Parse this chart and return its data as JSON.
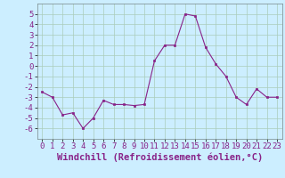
{
  "x": [
    0,
    1,
    2,
    3,
    4,
    5,
    6,
    7,
    8,
    9,
    10,
    11,
    12,
    13,
    14,
    15,
    16,
    17,
    18,
    19,
    20,
    21,
    22,
    23
  ],
  "y": [
    -2.5,
    -3.0,
    -4.7,
    -4.5,
    -6.0,
    -5.0,
    -3.3,
    -3.7,
    -3.7,
    -3.8,
    -3.7,
    0.5,
    2.0,
    2.0,
    5.0,
    4.8,
    1.8,
    0.2,
    -1.0,
    -3.0,
    -3.7,
    -2.2,
    -3.0,
    -3.0
  ],
  "line_color": "#882288",
  "marker": "s",
  "marker_size": 2,
  "bg_color": "#cceeff",
  "grid_color": "#aaccbb",
  "xlabel": "Windchill (Refroidissement éolien,°C)",
  "xlabel_fontsize": 7.5,
  "tick_fontsize": 6.5,
  "ylim": [
    -7,
    6
  ],
  "yticks": [
    -6,
    -5,
    -4,
    -3,
    -2,
    -1,
    0,
    1,
    2,
    3,
    4,
    5
  ],
  "xticks": [
    0,
    1,
    2,
    3,
    4,
    5,
    6,
    7,
    8,
    9,
    10,
    11,
    12,
    13,
    14,
    15,
    16,
    17,
    18,
    19,
    20,
    21,
    22,
    23
  ],
  "xlim": [
    -0.5,
    23.5
  ]
}
